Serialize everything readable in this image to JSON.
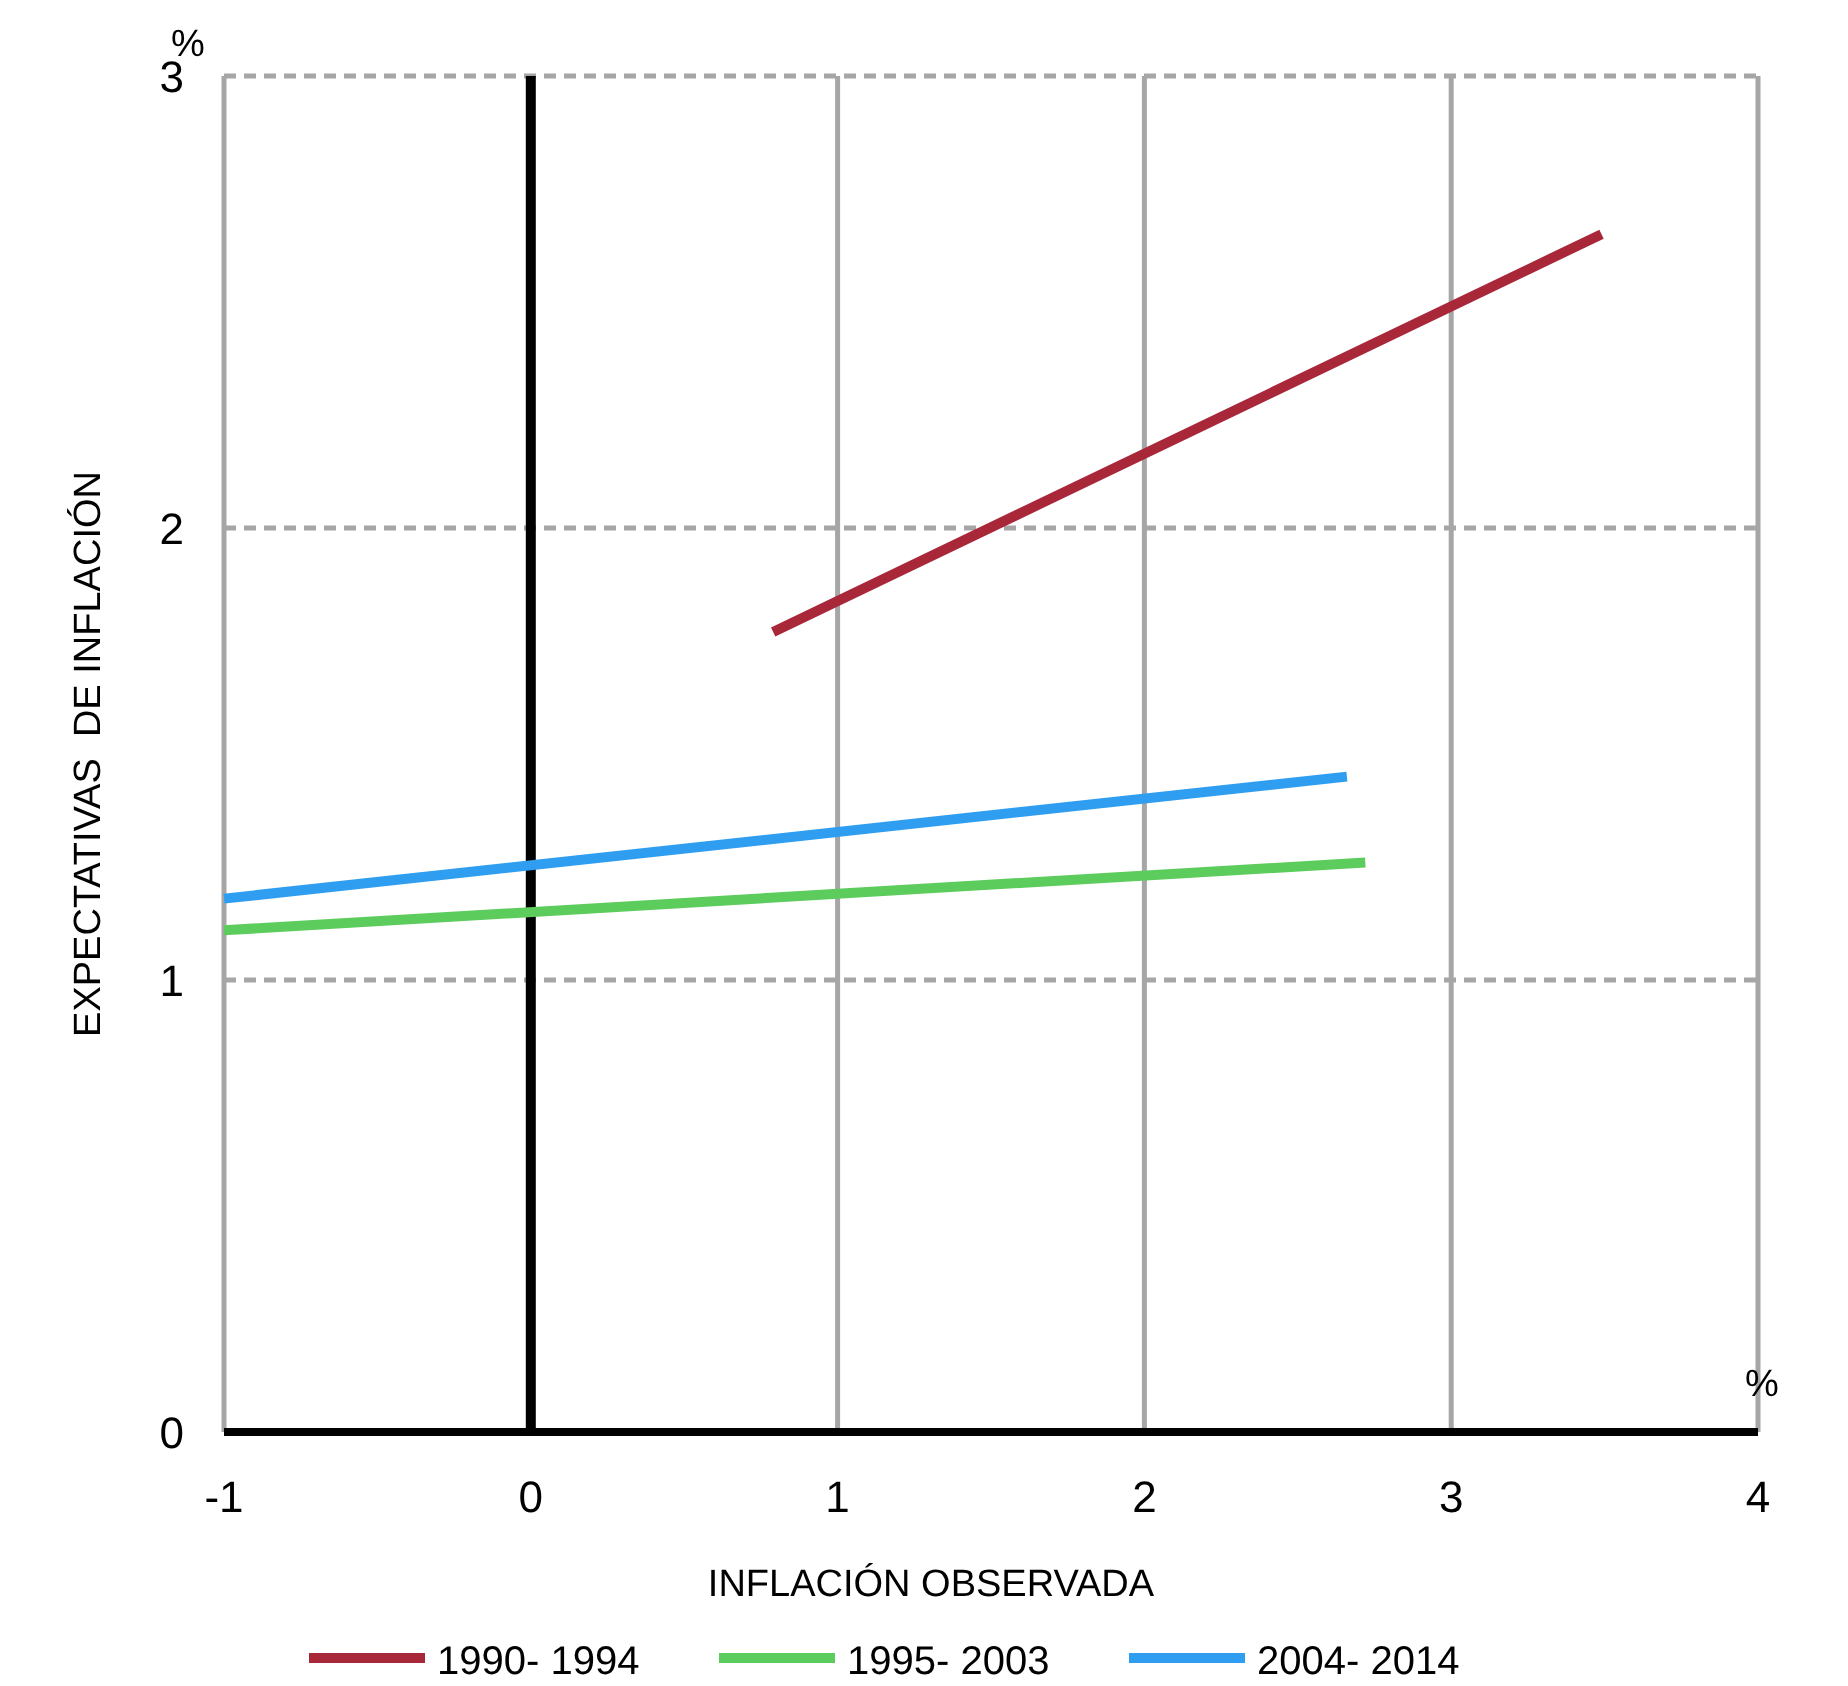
{
  "chart_data": {
    "type": "line",
    "xlabel": "INFLACIÓN OBSERVADA",
    "ylabel": "EXPECTATIVAS  DE INFLACIÓN",
    "annotations": [
      "%",
      "%"
    ],
    "xlim": [
      -1,
      4
    ],
    "xticks": [
      -1,
      0,
      1,
      2,
      3,
      4
    ],
    "ylim": [
      0,
      3
    ],
    "yticks": [
      0,
      1,
      2,
      3
    ],
    "grid": true,
    "legend": "bottom",
    "marker": "none",
    "line_style": "solid",
    "ref_lines": [
      {
        "axis": "x",
        "value": 0,
        "color": "#000000"
      }
    ],
    "series": [
      {
        "name": "1990- 1994",
        "color": "#a8283a",
        "x": [
          0.79,
          3.49
        ],
        "values": [
          1.77,
          2.65
        ]
      },
      {
        "name": "1995- 2003",
        "color": "#5ccc5c",
        "x": [
          -1,
          2.72
        ],
        "values": [
          1.11,
          1.26
        ]
      },
      {
        "name": "2004- 2014",
        "color": "#2f9ef0",
        "x": [
          -1,
          2.66
        ],
        "values": [
          1.18,
          1.45
        ]
      }
    ]
  }
}
